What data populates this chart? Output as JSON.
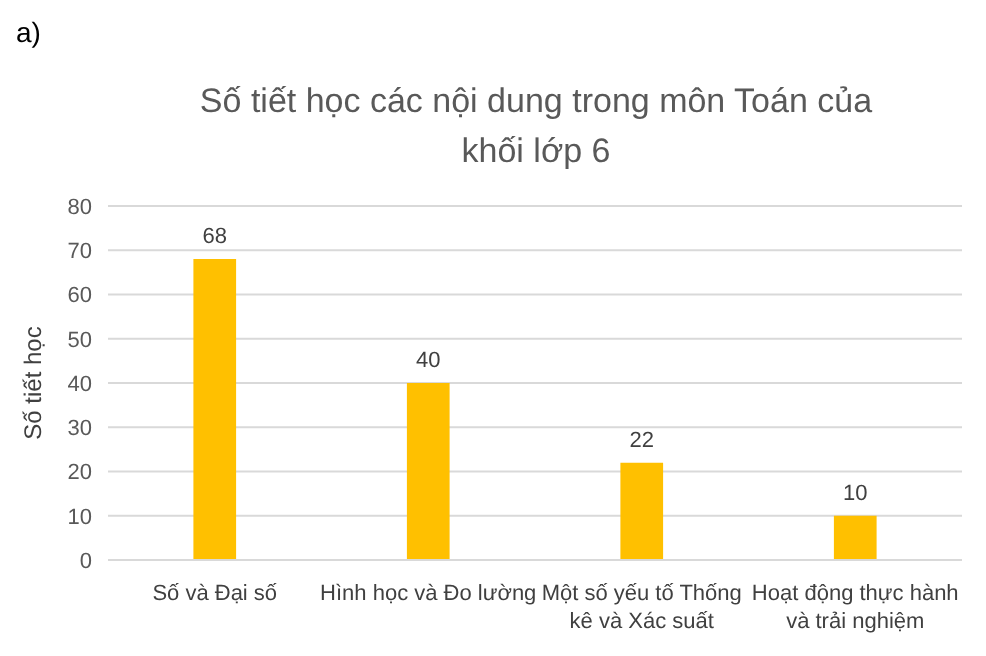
{
  "chart_data": {
    "type": "bar",
    "title": "Số tiết học các nội dung trong môn Toán của khối lớp 6",
    "ylabel": "Số tiết học",
    "categories": [
      "Số và Đại số",
      "Hình học và Đo lường",
      "Một số yếu tố Thống kê và Xác suất",
      "Hoạt động thực hành và trải nghiệm"
    ],
    "values": [
      68,
      40,
      22,
      10
    ],
    "color": "#ffc000",
    "ylim": [
      0,
      80
    ],
    "yticks": [
      0,
      10,
      20,
      30,
      40,
      50,
      60,
      70,
      80
    ],
    "grid": "y",
    "data_labels": true,
    "annotations": [
      "a)"
    ]
  }
}
